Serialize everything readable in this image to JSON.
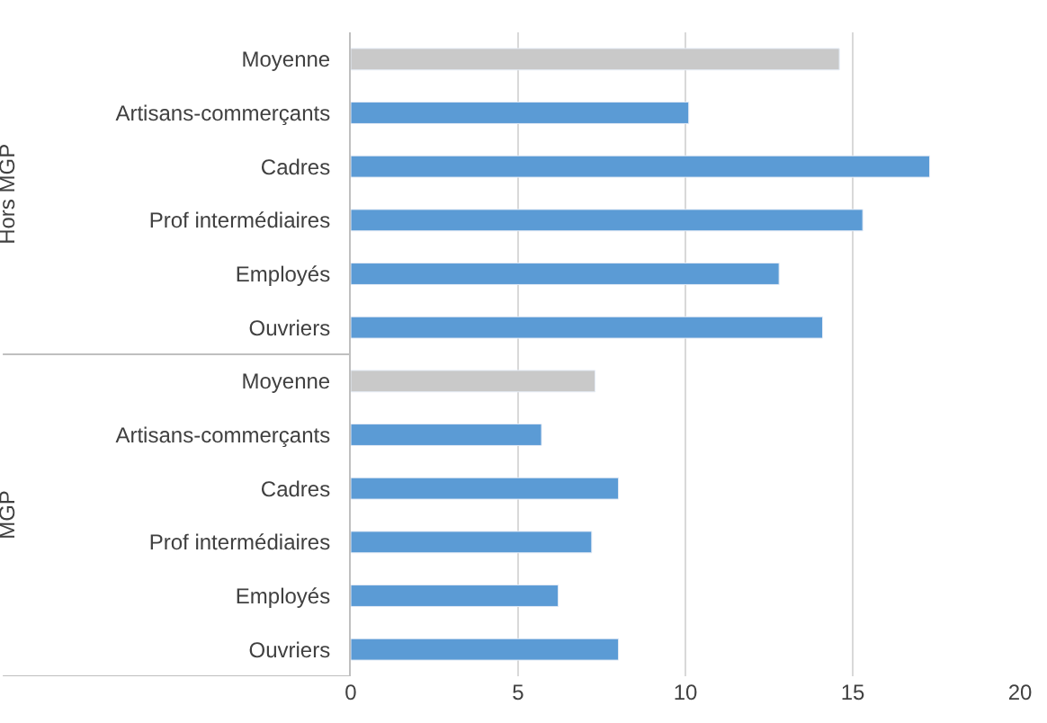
{
  "chart_data": {
    "type": "bar",
    "orientation": "horizontal",
    "categories": [
      "Moyenne",
      "Artisans-commerçants",
      "Cadres",
      "Prof intermédiaires",
      "Employés",
      "Ouvriers",
      "Moyenne",
      "Artisans-commerçants",
      "Cadres",
      "Prof intermédiaires",
      "Employés",
      "Ouvriers"
    ],
    "values": [
      14.6,
      10.1,
      17.3,
      15.3,
      12.8,
      14.1,
      7.3,
      5.7,
      8.0,
      7.2,
      6.2,
      8.0
    ],
    "colors": [
      "#c9c9c9",
      "#5b9bd5",
      "#5b9bd5",
      "#5b9bd5",
      "#5b9bd5",
      "#5b9bd5",
      "#c9c9c9",
      "#5b9bd5",
      "#5b9bd5",
      "#5b9bd5",
      "#5b9bd5",
      "#5b9bd5"
    ],
    "xlim": [
      0,
      20
    ],
    "xticks": [
      0,
      5,
      10,
      15,
      20
    ],
    "grid": "x",
    "legend": false,
    "annotations": [
      "Hors MGP",
      "MGP"
    ]
  }
}
